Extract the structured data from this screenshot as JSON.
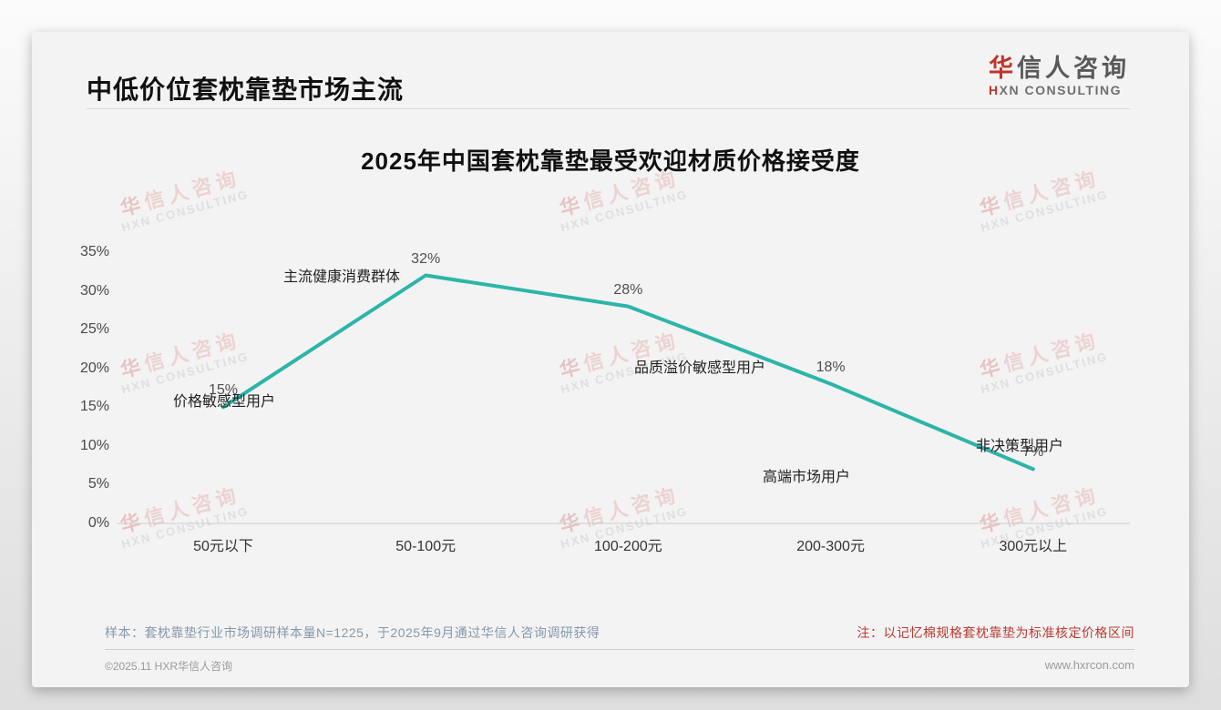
{
  "page": {
    "report_title": "中低价位套枕靠垫市场主流",
    "logo": {
      "brand_cn_accent": "华",
      "brand_cn_rest": "信人咨询",
      "brand_en_accent": "H",
      "brand_en_rest": "XN CONSULTING"
    },
    "watermark": {
      "line1_accent": "华",
      "line1_rest": "信人咨询",
      "line2": "HXN CONSULTING"
    },
    "footnote_sample": "样本：套枕靠垫行业市场调研样本量N=1225，于2025年9月通过华信人咨询调研获得",
    "footnote_note": "注：以记忆棉规格套枕靠垫为标准核定价格区间",
    "footer_left": "©2025.11 HXR华信人咨询",
    "footer_right": "www.hxrcon.com"
  },
  "chart_data": {
    "type": "line",
    "title": "2025年中国套枕靠垫最受欢迎材质价格接受度",
    "xlabel": "",
    "ylabel": "",
    "categories": [
      "50元以下",
      "50-100元",
      "100-200元",
      "200-300元",
      "300元以上"
    ],
    "values": [
      15,
      32,
      28,
      18,
      7
    ],
    "data_labels": [
      "15%",
      "32%",
      "28%",
      "18%",
      "7%"
    ],
    "annotations": [
      "价格敏感型用户",
      "主流健康消费群体",
      "品质溢价敏感型用户",
      "高端市场用户",
      "非决策型用户"
    ],
    "ylim": [
      0,
      35
    ],
    "ytick_step": 5,
    "ytick_labels": [
      "0%",
      "5%",
      "10%",
      "15%",
      "20%",
      "25%",
      "30%",
      "35%"
    ],
    "line_color": "#2cb5a8",
    "axis_color": "#cccccc",
    "grid": false,
    "legend": false
  }
}
